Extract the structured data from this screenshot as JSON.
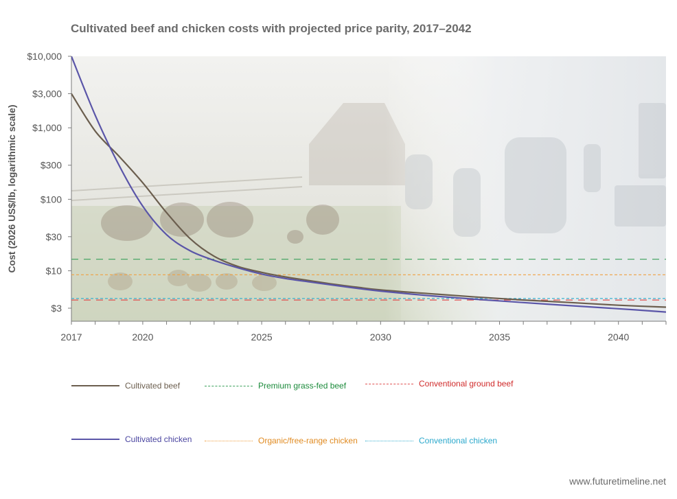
{
  "chart_data": {
    "type": "line",
    "title": "Cultivated beef and chicken costs with projected price parity, 2017–2042",
    "ylabel": "Cost (2026 US$/lb, logarithmic scale)",
    "xlabel": "",
    "yscale": "log",
    "xlim": [
      2017,
      2042
    ],
    "ylim": [
      2,
      10000
    ],
    "y_ticks": [
      {
        "value": 10000,
        "label": "$10,000"
      },
      {
        "value": 3000,
        "label": "$3,000"
      },
      {
        "value": 1000,
        "label": "$1,000"
      },
      {
        "value": 300,
        "label": "$300"
      },
      {
        "value": 100,
        "label": "$100"
      },
      {
        "value": 30,
        "label": "$30"
      },
      {
        "value": 10,
        "label": "$10"
      },
      {
        "value": 3,
        "label": "$3"
      }
    ],
    "x_ticks": [
      {
        "value": 2017,
        "label": "2017"
      },
      {
        "value": 2020,
        "label": "2020"
      },
      {
        "value": 2025,
        "label": "2025"
      },
      {
        "value": 2030,
        "label": "2030"
      },
      {
        "value": 2035,
        "label": "2035"
      },
      {
        "value": 2040,
        "label": "2040"
      }
    ],
    "grid": false,
    "legend_position": "bottom",
    "series": [
      {
        "name": "Cultivated beef",
        "color": "#6b5e4e",
        "style": "solid",
        "x": [
          2017,
          2018,
          2019,
          2020,
          2021,
          2022,
          2023,
          2024,
          2025,
          2026,
          2027,
          2028,
          2029,
          2030,
          2032,
          2034,
          2036,
          2038,
          2040,
          2042
        ],
        "y": [
          3000,
          900,
          400,
          170,
          65,
          28,
          16,
          11.5,
          9.5,
          8.2,
          7.3,
          6.5,
          5.9,
          5.4,
          4.8,
          4.3,
          3.9,
          3.6,
          3.3,
          3.1
        ]
      },
      {
        "name": "Cultivated chicken",
        "color": "#5a55a8",
        "style": "solid",
        "x": [
          2017,
          2018,
          2019,
          2020,
          2021,
          2022,
          2023,
          2024,
          2025,
          2026,
          2027,
          2028,
          2029,
          2030,
          2032,
          2034,
          2036,
          2038,
          2040,
          2042
        ],
        "y": [
          10000,
          1500,
          300,
          80,
          32,
          19,
          14,
          11,
          9,
          7.8,
          7,
          6.3,
          5.7,
          5.2,
          4.5,
          4,
          3.6,
          3.25,
          2.95,
          2.65
        ]
      },
      {
        "name": "Premium grass-fed beef",
        "color": "#3aa05a",
        "style": "dash",
        "x": [
          2017,
          2042
        ],
        "y": [
          14.5,
          14.5
        ]
      },
      {
        "name": "Conventional ground beef",
        "color": "#e05050",
        "style": "dash",
        "x": [
          2017,
          2042
        ],
        "y": [
          3.9,
          3.9
        ]
      },
      {
        "name": "Organic/free-range chicken",
        "color": "#f0a040",
        "style": "dot",
        "x": [
          2017,
          2042
        ],
        "y": [
          8.8,
          8.8
        ]
      },
      {
        "name": "Conventional chicken",
        "color": "#3ab0d0",
        "style": "dot",
        "x": [
          2017,
          2042
        ],
        "y": [
          4.1,
          4.1
        ]
      }
    ]
  },
  "legend": [
    {
      "label": "Cultivated beef",
      "color": "#6b5e4e",
      "text_color": "#6b5e4e",
      "style": "solid"
    },
    {
      "label": "Premium grass-fed beef",
      "color": "#3aa05a",
      "text_color": "#1a8a3a",
      "style": "dash"
    },
    {
      "label": "Conventional ground beef",
      "color": "#e05050",
      "text_color": "#d02a2a",
      "style": "dash"
    },
    {
      "label": "Cultivated chicken",
      "color": "#5a55a8",
      "text_color": "#4a45a0",
      "style": "solid"
    },
    {
      "label": "Organic/free-range chicken",
      "color": "#f0a040",
      "text_color": "#e08a20",
      "style": "dot"
    },
    {
      "label": "Conventional chicken",
      "color": "#3ab0d0",
      "text_color": "#2aa8cc",
      "style": "dot"
    }
  ],
  "source": "www.futuretimeline.net"
}
